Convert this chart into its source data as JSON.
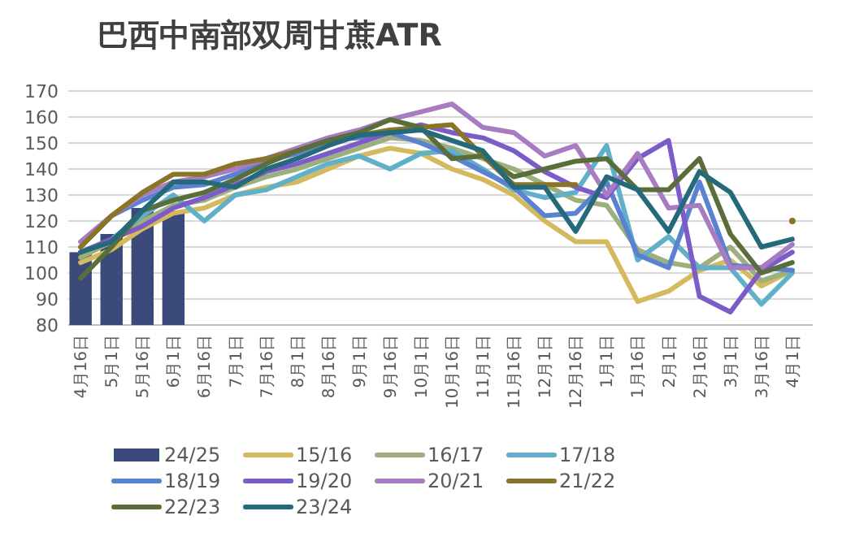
{
  "chart_data": {
    "type": "bar",
    "title": "巴西中南部双周甘蔗ATR",
    "categories": [
      "4月16日",
      "5月1日",
      "5月16日",
      "6月1日",
      "6月16日",
      "7月1日",
      "7月16日",
      "8月1日",
      "8月16日",
      "9月1日",
      "9月16日",
      "10月1日",
      "10月16日",
      "11月1日",
      "11月16日",
      "12月1日",
      "12月16日",
      "1月1日",
      "1月16日",
      "2月1日",
      "2月16日",
      "3月1日",
      "3月16日",
      "4月1日"
    ],
    "series": [
      {
        "name": "24/25",
        "color": "#3b4a7a",
        "values": [
          108,
          115,
          125,
          124,
          null,
          null,
          null,
          null,
          null,
          null,
          null,
          null,
          null,
          null,
          null,
          null,
          null,
          null,
          null,
          null,
          null,
          null,
          null,
          null
        ]
      },
      {
        "name": "15/16",
        "type": "line",
        "color": "#d4b95e",
        "values": [
          104,
          109,
          117,
          123,
          125,
          130,
          133,
          135,
          140,
          145,
          148,
          146,
          140,
          136,
          130,
          120,
          112,
          112,
          89,
          93,
          101,
          105,
          95,
          101
        ]
      },
      {
        "name": "16/17",
        "type": "line",
        "color": "#9caf7c",
        "values": [
          106,
          112,
          120,
          126,
          128,
          133,
          137,
          140,
          144,
          148,
          152,
          151,
          148,
          144,
          140,
          134,
          128,
          126,
          109,
          104,
          102,
          110,
          97,
          101
        ]
      },
      {
        "name": "17/18",
        "type": "line",
        "color": "#5fb0c8",
        "values": [
          108,
          113,
          122,
          130,
          120,
          130,
          132,
          137,
          142,
          145,
          140,
          146,
          147,
          140,
          132,
          129,
          131,
          149,
          105,
          114,
          102,
          102,
          88,
          100
        ]
      },
      {
        "name": "18/19",
        "type": "line",
        "color": "#5b82d0",
        "values": [
          110,
          122,
          128,
          133,
          134,
          138,
          143,
          146,
          151,
          152,
          154,
          150,
          145,
          139,
          133,
          122,
          123,
          135,
          107,
          102,
          135,
          103,
          102,
          101
        ]
      },
      {
        "name": "19/20",
        "type": "line",
        "color": "#7b5cc8",
        "values": [
          108,
          113,
          118,
          125,
          129,
          134,
          139,
          142,
          146,
          150,
          154,
          157,
          154,
          152,
          147,
          139,
          133,
          129,
          144,
          151,
          91,
          85,
          101,
          108
        ]
      },
      {
        "name": "20/21",
        "type": "line",
        "color": "#a77cc0",
        "values": [
          112,
          122,
          130,
          135,
          137,
          140,
          144,
          148,
          152,
          155,
          159,
          162,
          165,
          156,
          154,
          145,
          149,
          130,
          146,
          125,
          126,
          102,
          102,
          111
        ]
      },
      {
        "name": "21/22",
        "type": "line",
        "color": "#8a7428",
        "values": [
          110,
          122,
          131,
          138,
          138,
          142,
          144,
          147,
          151,
          153,
          155,
          156,
          157,
          145,
          134,
          134,
          134,
          null,
          null,
          null,
          null,
          null,
          null,
          120
        ]
      },
      {
        "name": "22/23",
        "type": "line",
        "color": "#5a6e3c",
        "values": [
          98,
          110,
          124,
          128,
          131,
          136,
          142,
          147,
          151,
          154,
          159,
          156,
          144,
          145,
          137,
          140,
          143,
          144,
          132,
          132,
          144,
          115,
          100,
          104
        ]
      },
      {
        "name": "23/24",
        "type": "line",
        "color": "#246a7a",
        "values": [
          108,
          112,
          124,
          135,
          135,
          133,
          140,
          144,
          149,
          153,
          154,
          155,
          151,
          147,
          133,
          133,
          116,
          137,
          132,
          116,
          139,
          131,
          110,
          113
        ]
      }
    ],
    "ylim": [
      80,
      170
    ],
    "yticks": [
      80,
      90,
      100,
      110,
      120,
      130,
      140,
      150,
      160,
      170
    ],
    "grid": "y",
    "legend": "bottom"
  }
}
